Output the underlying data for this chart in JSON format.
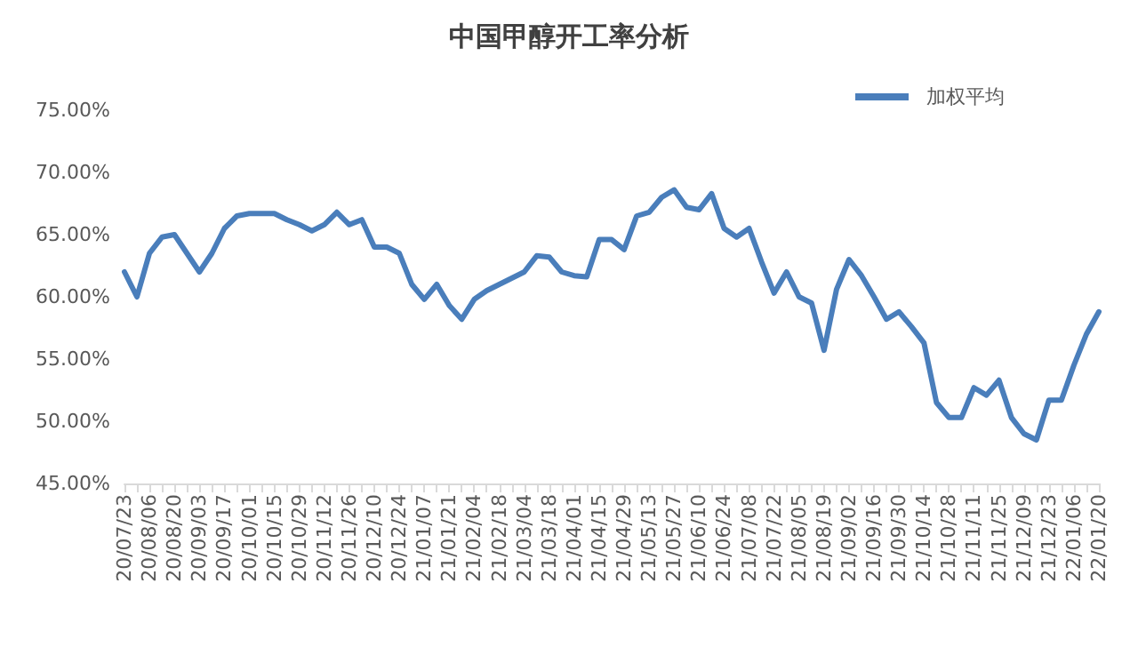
{
  "chart_data": {
    "type": "line",
    "title": "中国甲醇开工率分析",
    "categories": [
      "20/07/23",
      null,
      "20/08/06",
      null,
      "20/08/20",
      null,
      "20/09/03",
      null,
      "20/09/17",
      null,
      "20/10/01",
      null,
      "20/10/15",
      null,
      "20/10/29",
      null,
      "20/11/12",
      null,
      "20/11/26",
      null,
      "20/12/10",
      null,
      "20/12/24",
      null,
      "21/01/07",
      null,
      "21/01/21",
      null,
      "21/02/04",
      null,
      "21/02/18",
      null,
      "21/03/04",
      null,
      "21/03/18",
      null,
      "21/04/01",
      null,
      "21/04/15",
      null,
      "21/04/29",
      null,
      "21/05/13",
      null,
      "21/05/27",
      null,
      "21/06/10",
      null,
      "21/06/24",
      null,
      "21/07/08",
      null,
      "21/07/22",
      null,
      "21/08/05",
      null,
      "21/08/19",
      null,
      "21/09/02",
      null,
      "21/09/16",
      null,
      "21/09/30",
      null,
      "21/10/14",
      null,
      "21/10/28",
      null,
      "21/11/11",
      null,
      "21/11/25",
      null,
      "21/12/09",
      null,
      "21/12/23",
      null,
      "22/01/06",
      null,
      "22/01/20"
    ],
    "series": [
      {
        "name": "加权平均",
        "color": "#4a7ebb",
        "values": [
          62,
          60,
          63.5,
          64.8,
          65,
          63.5,
          62,
          63.5,
          65.5,
          66.5,
          66.7,
          66.7,
          66.7,
          66.2,
          65.8,
          65.3,
          65.8,
          66.8,
          65.8,
          66.2,
          64,
          64,
          63.5,
          61,
          59.8,
          61,
          59.3,
          58.2,
          59.8,
          60.5,
          61,
          61.5,
          62,
          63.3,
          63.2,
          62,
          61.7,
          61.6,
          64.6,
          64.6,
          63.8,
          66.5,
          66.8,
          68,
          68.6,
          67.2,
          67,
          68.3,
          65.5,
          64.8,
          65.5,
          62.8,
          60.3,
          62,
          60,
          59.5,
          55.7,
          60.6,
          63,
          61.7,
          60,
          58.2,
          58.8,
          57.6,
          56.3,
          51.5,
          50.3,
          50.3,
          52.7,
          52.1,
          53.3,
          50.3,
          49,
          48.5,
          51.7,
          51.7,
          54.5,
          57,
          58.8
        ]
      }
    ],
    "ylim": [
      45,
      75
    ],
    "yticks": [
      {
        "value": 45,
        "label": "45.00%"
      },
      {
        "value": 50,
        "label": "50.00%"
      },
      {
        "value": 55,
        "label": "55.00%"
      },
      {
        "value": 60,
        "label": "60.00%"
      },
      {
        "value": 65,
        "label": "65.00%"
      },
      {
        "value": 70,
        "label": "70.00%"
      },
      {
        "value": 75,
        "label": "75.00%"
      }
    ],
    "grid": false,
    "legend": "top right",
    "marker": "none",
    "line_style": "solid"
  }
}
